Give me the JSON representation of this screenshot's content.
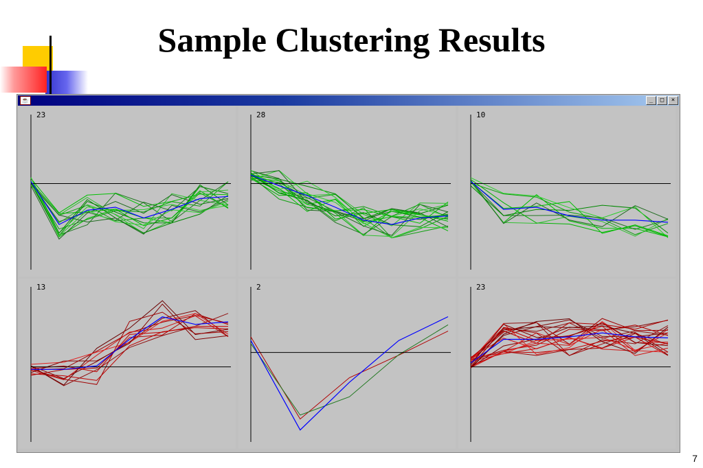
{
  "slide": {
    "title": "Sample Clustering Results",
    "page_number": "7"
  },
  "window": {
    "icon": "java-cup-icon",
    "buttons": [
      "minimize",
      "maximize",
      "close"
    ],
    "button_glyphs": {
      "minimize": "_",
      "maximize": "□",
      "close": "×"
    }
  },
  "colors": {
    "baseline": "#000000",
    "mean_profile": "#0000ff",
    "green_profiles": "#00a000",
    "red_profiles": "#c00000",
    "panel_bg": "#c3c3c3",
    "titlebar": "#000080"
  },
  "chart_data": [
    {
      "type": "line",
      "count_label": "23",
      "y_center": 0,
      "y_range": [
        -2,
        1.6
      ],
      "tone": "green",
      "n_profiles": 15,
      "mean": [
        0.05,
        -0.95,
        -0.62,
        -0.55,
        -0.8,
        -0.6,
        -0.35,
        -0.3
      ]
    },
    {
      "type": "line",
      "count_label": "28",
      "y_center": 0,
      "y_range": [
        -2,
        1.6
      ],
      "tone": "green",
      "n_profiles": 18,
      "mean": [
        0.2,
        -0.05,
        -0.28,
        -0.55,
        -0.85,
        -0.95,
        -0.8,
        -0.75
      ]
    },
    {
      "type": "line",
      "count_label": "10",
      "y_center": 0,
      "y_range": [
        -2,
        1.6
      ],
      "tone": "green",
      "n_profiles": 9,
      "mean": [
        0.05,
        -0.6,
        -0.55,
        -0.75,
        -0.85,
        -0.85,
        -0.9
      ]
    },
    {
      "type": "line",
      "count_label": "13",
      "y_center": 0,
      "y_range": [
        -1.5,
        1.6
      ],
      "tone": "red",
      "n_profiles": 11,
      "mean": [
        -0.05,
        -0.05,
        0.02,
        0.55,
        1.0,
        0.85,
        0.9
      ]
    },
    {
      "type": "line",
      "count_label": "2",
      "y_center": 0,
      "y_range": [
        -1.5,
        1.1
      ],
      "tone": "mixed",
      "n_profiles": 2,
      "mean": [
        0.2,
        -1.3,
        -0.5,
        0.2,
        0.6
      ]
    },
    {
      "type": "line",
      "count_label": "23",
      "y_center": 0,
      "y_range": [
        -1.5,
        1.6
      ],
      "tone": "red",
      "n_profiles": 20,
      "mean": [
        0.08,
        0.55,
        0.55,
        0.6,
        0.68,
        0.6,
        0.58
      ]
    }
  ]
}
